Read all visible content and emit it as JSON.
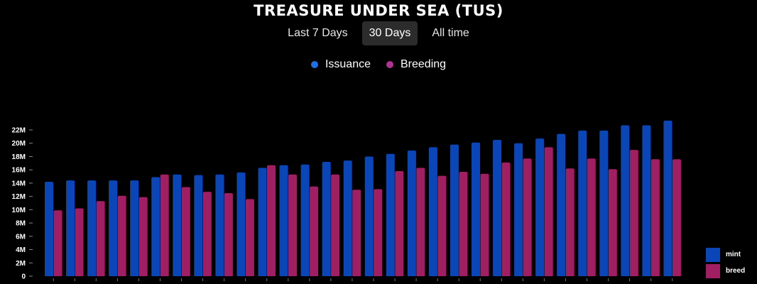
{
  "header": {
    "title": "TREASURE UNDER SEA (TUS)"
  },
  "tabs": [
    {
      "label": "Last 7 Days",
      "active": false
    },
    {
      "label": "30 Days",
      "active": true
    },
    {
      "label": "All time",
      "active": false
    }
  ],
  "top_legend": [
    {
      "label": "Issuance",
      "color": "#1f6fe5"
    },
    {
      "label": "Breeding",
      "color": "#b0338f"
    }
  ],
  "side_legend": [
    {
      "label": "mint",
      "color": "#0b46b8"
    },
    {
      "label": "breed",
      "color": "#a01e62"
    }
  ],
  "chart_data": {
    "type": "bar",
    "ylim": [
      0,
      22000000
    ],
    "yticks": [
      "0",
      "2M",
      "4M",
      "6M",
      "8M",
      "10M",
      "12M",
      "14M",
      "16M",
      "18M",
      "20M",
      "22M"
    ],
    "grid": false,
    "series": [
      {
        "name": "mint",
        "color": "#0b46b8",
        "values": [
          14.2,
          14.4,
          14.4,
          14.4,
          14.4,
          14.9,
          15.3,
          15.2,
          15.3,
          15.6,
          16.3,
          16.7,
          16.8,
          17.2,
          17.4,
          18.0,
          18.4,
          18.9,
          19.4,
          19.8,
          20.1,
          20.5,
          20.0,
          20.7,
          21.4,
          21.9,
          21.9,
          22.7,
          22.7,
          23.4
        ]
      },
      {
        "name": "breed",
        "color": "#a01e62",
        "values": [
          9.9,
          10.2,
          11.3,
          12.1,
          11.9,
          15.3,
          13.4,
          12.7,
          12.5,
          11.6,
          16.7,
          15.3,
          13.5,
          15.3,
          13.0,
          13.1,
          15.8,
          16.3,
          15.1,
          15.7,
          15.4,
          17.1,
          17.7,
          19.4,
          16.2,
          17.7,
          16.1,
          19.0,
          17.6,
          17.6
        ]
      }
    ],
    "value_unit": "M"
  }
}
